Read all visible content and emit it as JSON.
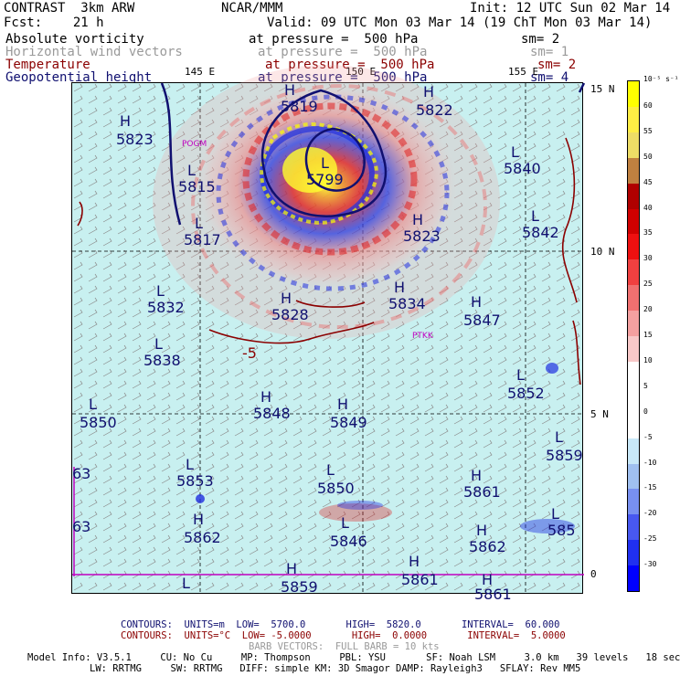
{
  "header": {
    "line1_left": "CONTRAST  3km ARW",
    "line1_mid": "NCAR/MMM",
    "line1_right": "Init: 12 UTC Sun 02 Mar 14",
    "line2_left": "Fcst:    21 h",
    "line2_right": "Valid: 09 UTC Mon 03 Mar 14 (19 ChT Mon 03 Mar 14)"
  },
  "fields": [
    {
      "name": "Absolute vorticity",
      "level": "at pressure =  500 hPa",
      "smooth": "sm= 2",
      "color": "#000000"
    },
    {
      "name": "Horizontal wind vectors",
      "level": "at pressure =  500 hPa",
      "smooth": "sm= 1",
      "color": "#9a9a9a"
    },
    {
      "name": "Temperature",
      "level": "at pressure =  500 hPa",
      "smooth": "sm= 2",
      "color": "#8b0000"
    },
    {
      "name": "Geopotential height",
      "level": "at pressure =  500 hPa",
      "smooth": "sm= 4",
      "color": "#101070"
    }
  ],
  "axes": {
    "lon_labels": [
      "145 E",
      "150 E",
      "155 E"
    ],
    "lat_labels": [
      "15 N",
      "10 N",
      "5 N",
      "0"
    ]
  },
  "places": [
    "POGM",
    "PTKK"
  ],
  "centers": [
    {
      "type": "H",
      "value": "5823"
    },
    {
      "type": "H",
      "value": "5819"
    },
    {
      "type": "H",
      "value": "5822"
    },
    {
      "type": "L",
      "value": "5815"
    },
    {
      "type": "L",
      "value": "5817"
    },
    {
      "type": "L",
      "value": "5799"
    },
    {
      "type": "H",
      "value": "5823"
    },
    {
      "type": "L",
      "value": "5840"
    },
    {
      "type": "L",
      "value": "5842"
    },
    {
      "type": "L",
      "value": "5832"
    },
    {
      "type": "H",
      "value": "5828"
    },
    {
      "type": "H",
      "value": "5834"
    },
    {
      "type": "H",
      "value": "5847"
    },
    {
      "type": "L",
      "value": "5838"
    },
    {
      "type": "L",
      "value": "5852"
    },
    {
      "type": "L",
      "value": "5850"
    },
    {
      "type": "H",
      "value": "5848"
    },
    {
      "type": "H",
      "value": "5849"
    },
    {
      "type": "L",
      "value": "5859"
    },
    {
      "type": "L",
      "value": "5853"
    },
    {
      "type": "L",
      "value": "5850"
    },
    {
      "type": "H",
      "value": "5861"
    },
    {
      "type": "H",
      "value": "5862"
    },
    {
      "type": "L",
      "value": "5846"
    },
    {
      "type": "H",
      "value": "5862"
    },
    {
      "type": "L",
      "value": "585"
    },
    {
      "type": "H",
      "value": "5859"
    },
    {
      "type": "H",
      "value": "5861"
    },
    {
      "type": "H",
      "value": "5861"
    },
    {
      "type": "L",
      "value": ""
    },
    {
      "type": "",
      "value": "63"
    },
    {
      "type": "",
      "value": "63"
    },
    {
      "type": "",
      "value": "-5"
    }
  ],
  "colorbar": {
    "unit": "10⁻⁵ s⁻¹",
    "labels": [
      "60",
      "55",
      "50",
      "45",
      "40",
      "35",
      "30",
      "25",
      "20",
      "15",
      "10",
      "5",
      "0",
      "-5",
      "-10",
      "-15",
      "-20",
      "-25",
      "-30"
    ],
    "colors": [
      "#ffff00",
      "#ffee44",
      "#eedd66",
      "#c08040",
      "#b00000",
      "#d00000",
      "#ee1010",
      "#f04040",
      "#f07070",
      "#f4a0a0",
      "#f8c8c8",
      "#ffffff",
      "#ffffff",
      "#ffffff",
      "#c8e8f8",
      "#a0c0f0",
      "#7890f0",
      "#4858f0",
      "#2030f0",
      "#0000ff"
    ]
  },
  "footer": {
    "contours1": "CONTOURS:  UNITS=m  LOW=  5700.0       HIGH=  5820.0       INTERVAL=  60.000",
    "contours2": "CONTOURS:  UNITS=°C  LOW= -5.0000       HIGH=  0.0000       INTERVAL=  5.0000",
    "barbs": "BARB VECTORS:  FULL BARB = 10 kts",
    "model1": "Model Info: V3.5.1     CU: No Cu     MP: Thompson     PBL: YSU       SF: Noah LSM     3.0 km   39 levels   18 sec",
    "model2": "LW: RRTMG     SW: RRTMG   DIFF: simple KM: 3D Smagor DAMP: Rayleigh3   SFLAY: Rev MM5"
  }
}
